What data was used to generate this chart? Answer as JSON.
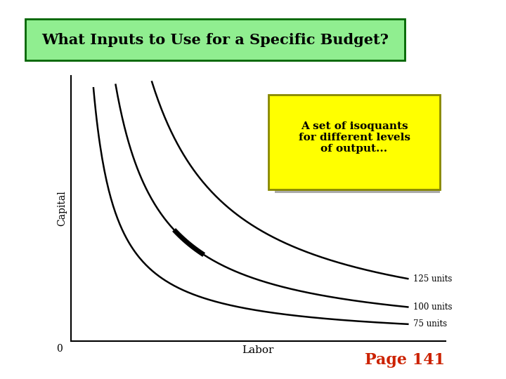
{
  "title": "What Inputs to Use for a Specific Budget?",
  "title_bg": "#90EE90",
  "title_border": "#006400",
  "xlabel": "Labor",
  "ylabel": "Capital",
  "origin_label": "0",
  "annotation_text": "A set of isoquants\nfor different levels\nof output...",
  "annotation_bg": "#FFFF00",
  "annotation_border": "#888800",
  "curve_labels": [
    "75 units",
    "100 units",
    "125 units"
  ],
  "curve_scales": [
    0.6,
    0.85,
    1.15
  ],
  "page_label": "Page 141",
  "page_color": "#CC2200",
  "background_color": "#f0f0f0",
  "plot_bg": "#f0f0f0"
}
